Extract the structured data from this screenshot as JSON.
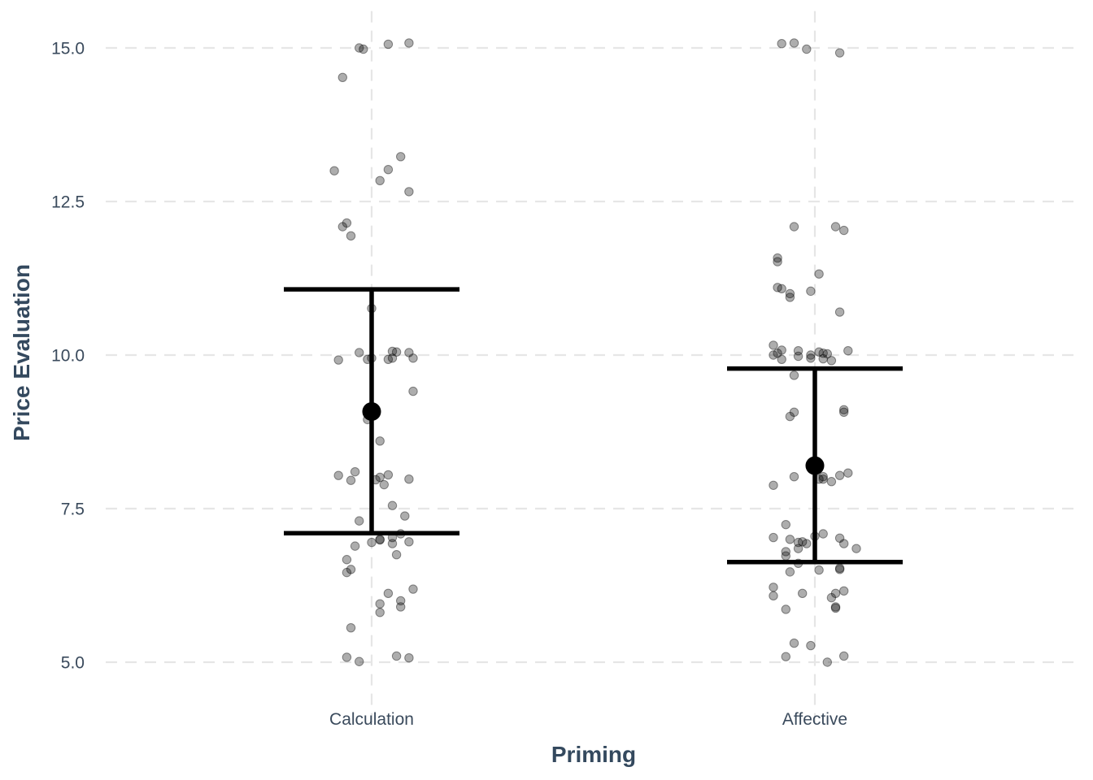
{
  "chart_data": {
    "type": "scatter",
    "description_type": "jittered points with mean and error bars",
    "xlabel": "Priming",
    "ylabel": "Price Evaluation",
    "categories": [
      "Calculation",
      "Affective"
    ],
    "ylim": [
      4.55,
      15.6
    ],
    "yticks": [
      5.0,
      7.5,
      10.0,
      12.5,
      15.0
    ],
    "ytick_labels": [
      "5.0",
      "7.5",
      "10.0",
      "12.5",
      "15.0"
    ],
    "grid": true,
    "legend": "none",
    "colors": {
      "points": "#000000",
      "point_alpha": 0.32,
      "summary": "#000000",
      "grid": "#e6e6e6",
      "text": "#3a4a5c",
      "title": "#34495e"
    },
    "summary": [
      {
        "category": "Calculation",
        "mean": 9.08,
        "lower": 7.1,
        "upper": 11.07
      },
      {
        "category": "Affective",
        "mean": 8.2,
        "lower": 6.63,
        "upper": 9.78
      }
    ],
    "points": [
      {
        "category": "Calculation",
        "jitter": -0.03,
        "y": 15.0
      },
      {
        "category": "Calculation",
        "jitter": -0.02,
        "y": 14.98
      },
      {
        "category": "Calculation",
        "jitter": 0.04,
        "y": 15.06
      },
      {
        "category": "Calculation",
        "jitter": 0.09,
        "y": 15.08
      },
      {
        "category": "Calculation",
        "jitter": -0.07,
        "y": 14.52
      },
      {
        "category": "Calculation",
        "jitter": 0.07,
        "y": 13.23
      },
      {
        "category": "Calculation",
        "jitter": -0.09,
        "y": 13.0
      },
      {
        "category": "Calculation",
        "jitter": 0.04,
        "y": 13.02
      },
      {
        "category": "Calculation",
        "jitter": 0.02,
        "y": 12.84
      },
      {
        "category": "Calculation",
        "jitter": 0.09,
        "y": 12.66
      },
      {
        "category": "Calculation",
        "jitter": -0.06,
        "y": 12.15
      },
      {
        "category": "Calculation",
        "jitter": -0.07,
        "y": 12.09
      },
      {
        "category": "Calculation",
        "jitter": -0.05,
        "y": 11.94
      },
      {
        "category": "Calculation",
        "jitter": 0.0,
        "y": 10.76
      },
      {
        "category": "Calculation",
        "jitter": -0.03,
        "y": 10.04
      },
      {
        "category": "Calculation",
        "jitter": 0.05,
        "y": 10.06
      },
      {
        "category": "Calculation",
        "jitter": 0.06,
        "y": 10.05
      },
      {
        "category": "Calculation",
        "jitter": 0.09,
        "y": 10.04
      },
      {
        "category": "Calculation",
        "jitter": -0.08,
        "y": 9.92
      },
      {
        "category": "Calculation",
        "jitter": -0.01,
        "y": 9.93
      },
      {
        "category": "Calculation",
        "jitter": 0.0,
        "y": 9.95
      },
      {
        "category": "Calculation",
        "jitter": 0.04,
        "y": 9.93
      },
      {
        "category": "Calculation",
        "jitter": 0.05,
        "y": 9.95
      },
      {
        "category": "Calculation",
        "jitter": 0.1,
        "y": 9.95
      },
      {
        "category": "Calculation",
        "jitter": 0.1,
        "y": 9.41
      },
      {
        "category": "Calculation",
        "jitter": -0.01,
        "y": 8.95
      },
      {
        "category": "Calculation",
        "jitter": 0.02,
        "y": 8.6
      },
      {
        "category": "Calculation",
        "jitter": -0.08,
        "y": 8.04
      },
      {
        "category": "Calculation",
        "jitter": -0.04,
        "y": 8.1
      },
      {
        "category": "Calculation",
        "jitter": -0.05,
        "y": 7.96
      },
      {
        "category": "Calculation",
        "jitter": 0.01,
        "y": 7.97
      },
      {
        "category": "Calculation",
        "jitter": 0.02,
        "y": 8.01
      },
      {
        "category": "Calculation",
        "jitter": 0.04,
        "y": 8.05
      },
      {
        "category": "Calculation",
        "jitter": 0.03,
        "y": 7.89
      },
      {
        "category": "Calculation",
        "jitter": 0.09,
        "y": 7.98
      },
      {
        "category": "Calculation",
        "jitter": 0.05,
        "y": 7.55
      },
      {
        "category": "Calculation",
        "jitter": 0.08,
        "y": 7.38
      },
      {
        "category": "Calculation",
        "jitter": -0.03,
        "y": 7.3
      },
      {
        "category": "Calculation",
        "jitter": 0.07,
        "y": 7.09
      },
      {
        "category": "Calculation",
        "jitter": 0.05,
        "y": 7.03
      },
      {
        "category": "Calculation",
        "jitter": 0.02,
        "y": 7.0
      },
      {
        "category": "Calculation",
        "jitter": 0.02,
        "y": 6.99
      },
      {
        "category": "Calculation",
        "jitter": 0.0,
        "y": 6.95
      },
      {
        "category": "Calculation",
        "jitter": 0.05,
        "y": 6.93
      },
      {
        "category": "Calculation",
        "jitter": 0.09,
        "y": 6.96
      },
      {
        "category": "Calculation",
        "jitter": -0.04,
        "y": 6.89
      },
      {
        "category": "Calculation",
        "jitter": 0.06,
        "y": 6.75
      },
      {
        "category": "Calculation",
        "jitter": -0.06,
        "y": 6.67
      },
      {
        "category": "Calculation",
        "jitter": -0.05,
        "y": 6.51
      },
      {
        "category": "Calculation",
        "jitter": -0.06,
        "y": 6.46
      },
      {
        "category": "Calculation",
        "jitter": 0.1,
        "y": 6.19
      },
      {
        "category": "Calculation",
        "jitter": 0.04,
        "y": 6.12
      },
      {
        "category": "Calculation",
        "jitter": 0.07,
        "y": 6.0
      },
      {
        "category": "Calculation",
        "jitter": 0.02,
        "y": 5.95
      },
      {
        "category": "Calculation",
        "jitter": 0.07,
        "y": 5.9
      },
      {
        "category": "Calculation",
        "jitter": 0.02,
        "y": 5.81
      },
      {
        "category": "Calculation",
        "jitter": -0.05,
        "y": 5.56
      },
      {
        "category": "Calculation",
        "jitter": -0.06,
        "y": 5.08
      },
      {
        "category": "Calculation",
        "jitter": 0.06,
        "y": 5.1
      },
      {
        "category": "Calculation",
        "jitter": 0.09,
        "y": 5.07
      },
      {
        "category": "Calculation",
        "jitter": -0.03,
        "y": 5.01
      },
      {
        "category": "Affective",
        "jitter": -0.08,
        "y": 15.07
      },
      {
        "category": "Affective",
        "jitter": -0.05,
        "y": 15.08
      },
      {
        "category": "Affective",
        "jitter": -0.02,
        "y": 14.98
      },
      {
        "category": "Affective",
        "jitter": 0.06,
        "y": 14.92
      },
      {
        "category": "Affective",
        "jitter": -0.05,
        "y": 12.09
      },
      {
        "category": "Affective",
        "jitter": 0.05,
        "y": 12.09
      },
      {
        "category": "Affective",
        "jitter": 0.07,
        "y": 12.03
      },
      {
        "category": "Affective",
        "jitter": -0.09,
        "y": 11.58
      },
      {
        "category": "Affective",
        "jitter": -0.09,
        "y": 11.52
      },
      {
        "category": "Affective",
        "jitter": 0.01,
        "y": 11.32
      },
      {
        "category": "Affective",
        "jitter": -0.09,
        "y": 11.1
      },
      {
        "category": "Affective",
        "jitter": -0.08,
        "y": 11.08
      },
      {
        "category": "Affective",
        "jitter": -0.06,
        "y": 11.0
      },
      {
        "category": "Affective",
        "jitter": -0.06,
        "y": 10.94
      },
      {
        "category": "Affective",
        "jitter": -0.01,
        "y": 11.04
      },
      {
        "category": "Affective",
        "jitter": 0.06,
        "y": 10.7
      },
      {
        "category": "Affective",
        "jitter": -0.1,
        "y": 10.16
      },
      {
        "category": "Affective",
        "jitter": -0.08,
        "y": 10.08
      },
      {
        "category": "Affective",
        "jitter": -0.09,
        "y": 10.03
      },
      {
        "category": "Affective",
        "jitter": -0.1,
        "y": 10.0
      },
      {
        "category": "Affective",
        "jitter": -0.08,
        "y": 9.93
      },
      {
        "category": "Affective",
        "jitter": -0.04,
        "y": 9.98
      },
      {
        "category": "Affective",
        "jitter": -0.04,
        "y": 10.07
      },
      {
        "category": "Affective",
        "jitter": -0.01,
        "y": 10.0
      },
      {
        "category": "Affective",
        "jitter": -0.01,
        "y": 9.95
      },
      {
        "category": "Affective",
        "jitter": 0.01,
        "y": 10.05
      },
      {
        "category": "Affective",
        "jitter": 0.02,
        "y": 10.03
      },
      {
        "category": "Affective",
        "jitter": 0.03,
        "y": 10.02
      },
      {
        "category": "Affective",
        "jitter": 0.02,
        "y": 9.94
      },
      {
        "category": "Affective",
        "jitter": 0.04,
        "y": 9.91
      },
      {
        "category": "Affective",
        "jitter": 0.08,
        "y": 10.07
      },
      {
        "category": "Affective",
        "jitter": -0.05,
        "y": 9.67
      },
      {
        "category": "Affective",
        "jitter": 0.07,
        "y": 9.11
      },
      {
        "category": "Affective",
        "jitter": 0.07,
        "y": 9.07
      },
      {
        "category": "Affective",
        "jitter": -0.05,
        "y": 9.07
      },
      {
        "category": "Affective",
        "jitter": -0.06,
        "y": 9.0
      },
      {
        "category": "Affective",
        "jitter": 0.08,
        "y": 8.08
      },
      {
        "category": "Affective",
        "jitter": 0.06,
        "y": 8.04
      },
      {
        "category": "Affective",
        "jitter": -0.05,
        "y": 8.02
      },
      {
        "category": "Affective",
        "jitter": 0.02,
        "y": 8.02
      },
      {
        "category": "Affective",
        "jitter": 0.02,
        "y": 7.98
      },
      {
        "category": "Affective",
        "jitter": 0.04,
        "y": 7.94
      },
      {
        "category": "Affective",
        "jitter": 0.01,
        "y": 7.98
      },
      {
        "category": "Affective",
        "jitter": -0.1,
        "y": 7.88
      },
      {
        "category": "Affective",
        "jitter": -0.07,
        "y": 7.24
      },
      {
        "category": "Affective",
        "jitter": -0.1,
        "y": 7.03
      },
      {
        "category": "Affective",
        "jitter": -0.06,
        "y": 7.0
      },
      {
        "category": "Affective",
        "jitter": -0.04,
        "y": 6.95
      },
      {
        "category": "Affective",
        "jitter": -0.03,
        "y": 6.96
      },
      {
        "category": "Affective",
        "jitter": -0.02,
        "y": 6.93
      },
      {
        "category": "Affective",
        "jitter": 0.0,
        "y": 7.05
      },
      {
        "category": "Affective",
        "jitter": 0.02,
        "y": 7.09
      },
      {
        "category": "Affective",
        "jitter": 0.06,
        "y": 7.02
      },
      {
        "category": "Affective",
        "jitter": 0.07,
        "y": 6.93
      },
      {
        "category": "Affective",
        "jitter": 0.1,
        "y": 6.85
      },
      {
        "category": "Affective",
        "jitter": -0.07,
        "y": 6.8
      },
      {
        "category": "Affective",
        "jitter": -0.07,
        "y": 6.73
      },
      {
        "category": "Affective",
        "jitter": -0.04,
        "y": 6.85
      },
      {
        "category": "Affective",
        "jitter": -0.04,
        "y": 6.61
      },
      {
        "category": "Affective",
        "jitter": -0.06,
        "y": 6.47
      },
      {
        "category": "Affective",
        "jitter": 0.01,
        "y": 6.5
      },
      {
        "category": "Affective",
        "jitter": 0.06,
        "y": 6.53
      },
      {
        "category": "Affective",
        "jitter": 0.06,
        "y": 6.51
      },
      {
        "category": "Affective",
        "jitter": -0.1,
        "y": 6.22
      },
      {
        "category": "Affective",
        "jitter": -0.1,
        "y": 6.08
      },
      {
        "category": "Affective",
        "jitter": -0.03,
        "y": 6.12
      },
      {
        "category": "Affective",
        "jitter": 0.05,
        "y": 6.12
      },
      {
        "category": "Affective",
        "jitter": 0.04,
        "y": 6.05
      },
      {
        "category": "Affective",
        "jitter": 0.07,
        "y": 6.16
      },
      {
        "category": "Affective",
        "jitter": 0.05,
        "y": 5.9
      },
      {
        "category": "Affective",
        "jitter": 0.05,
        "y": 5.88
      },
      {
        "category": "Affective",
        "jitter": -0.07,
        "y": 5.86
      },
      {
        "category": "Affective",
        "jitter": -0.05,
        "y": 5.31
      },
      {
        "category": "Affective",
        "jitter": -0.01,
        "y": 5.27
      },
      {
        "category": "Affective",
        "jitter": -0.07,
        "y": 5.09
      },
      {
        "category": "Affective",
        "jitter": 0.07,
        "y": 5.1
      },
      {
        "category": "Affective",
        "jitter": 0.03,
        "y": 5.0
      }
    ]
  }
}
